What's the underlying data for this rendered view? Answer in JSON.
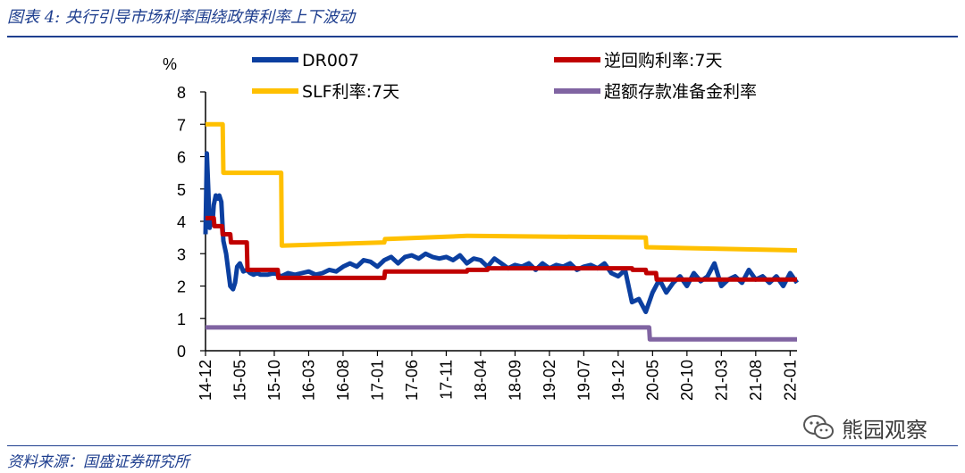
{
  "figure": {
    "title": "图表 4:  央行引导市场利率围绕政策利率上下波动",
    "source": "资料来源：国盛证券研究所",
    "watermark": "熊园观察"
  },
  "chart_data": {
    "type": "line",
    "title": "图表 4:  央行引导市场利率围绕政策利率上下波动",
    "ylabel": "%",
    "xlabel": "",
    "ylim": [
      0,
      8
    ],
    "yticks": [
      0,
      1,
      2,
      3,
      4,
      5,
      6,
      7,
      8
    ],
    "xlim": [
      0,
      86
    ],
    "x_ticks": [
      "14-12",
      "15-05",
      "15-10",
      "16-03",
      "16-08",
      "17-01",
      "17-06",
      "17-11",
      "18-04",
      "18-09",
      "19-02",
      "19-07",
      "19-12",
      "20-05",
      "20-10",
      "21-03",
      "21-08",
      "22-01"
    ],
    "x_unit": "months since 2014-12",
    "legend": "top",
    "colors": {
      "DR007": "#0b3fa0",
      "reverse_repo": "#c00000",
      "slf": "#ffc000",
      "excess_reserve": "#8064a2"
    },
    "series": [
      {
        "key": "DR007",
        "name": "DR007",
        "color": "#0b3fa0",
        "width": 5,
        "x": [
          0,
          0.2,
          0.4,
          0.6,
          0.8,
          1.0,
          1.2,
          1.5,
          1.8,
          2.0,
          2.3,
          2.6,
          3.0,
          3.3,
          3.6,
          4.0,
          4.3,
          4.6,
          5.0,
          5.5,
          6.0,
          6.5,
          7.0,
          7.5,
          8.0,
          9.0,
          10.0,
          11.0,
          12.0,
          13.0,
          14.0,
          15.0,
          16.0,
          17.0,
          18.0,
          19.0,
          20.0,
          21.0,
          22.0,
          23.0,
          24.0,
          25.0,
          26.0,
          27.0,
          28.0,
          29.0,
          30.0,
          31.0,
          32.0,
          33.0,
          34.0,
          35.0,
          36.0,
          37.0,
          38.0,
          39.0,
          40.0,
          41.0,
          42.0,
          43.0,
          44.0,
          45.0,
          46.0,
          47.0,
          48.0,
          49.0,
          50.0,
          51.0,
          52.0,
          53.0,
          54.0,
          55.0,
          56.0,
          57.0,
          58.0,
          59.0,
          60.0,
          61.0,
          62.0,
          63.0,
          64.0,
          65.0,
          66.0,
          67.0,
          68.0,
          69.0,
          70.0,
          71.0,
          72.0,
          73.0,
          74.0,
          75.0,
          76.0,
          77.0,
          78.0,
          79.0,
          80.0,
          81.0,
          82.0,
          83.0,
          84.0,
          85.0,
          86.0
        ],
        "values": [
          3.6,
          6.1,
          5.0,
          3.8,
          4.2,
          3.9,
          4.5,
          4.8,
          4.7,
          4.8,
          4.6,
          3.4,
          3.0,
          2.5,
          2.0,
          1.9,
          2.1,
          2.6,
          2.7,
          2.45,
          2.5,
          2.4,
          2.35,
          2.4,
          2.35,
          2.35,
          2.4,
          2.3,
          2.4,
          2.35,
          2.4,
          2.45,
          2.35,
          2.4,
          2.5,
          2.45,
          2.6,
          2.7,
          2.6,
          2.8,
          2.75,
          2.6,
          2.8,
          2.9,
          2.7,
          2.9,
          2.95,
          2.85,
          3.0,
          2.9,
          2.85,
          2.9,
          2.8,
          2.95,
          2.7,
          2.85,
          2.8,
          2.6,
          2.85,
          2.7,
          2.55,
          2.65,
          2.6,
          2.7,
          2.5,
          2.7,
          2.55,
          2.65,
          2.6,
          2.7,
          2.5,
          2.6,
          2.65,
          2.55,
          2.7,
          2.4,
          2.3,
          2.5,
          1.5,
          1.6,
          1.2,
          1.8,
          2.2,
          1.8,
          2.1,
          2.3,
          2.0,
          2.4,
          2.15,
          2.3,
          2.7,
          2.0,
          2.2,
          2.3,
          2.1,
          2.5,
          2.2,
          2.3,
          2.1,
          2.3,
          2.0,
          2.4,
          2.1
        ]
      },
      {
        "key": "reverse_repo",
        "name": "逆回购利率:7天",
        "color": "#c00000",
        "width": 5,
        "x": [
          0,
          1.2,
          1.3,
          2.4,
          2.5,
          3.6,
          3.7,
          6.0,
          6.1,
          10.5,
          10.6,
          26.0,
          26.1,
          38.0,
          38.1,
          41.0,
          41.1,
          62.0,
          62.1,
          64.0,
          64.1,
          65.5,
          65.6,
          86.0
        ],
        "values": [
          4.1,
          4.1,
          3.85,
          3.85,
          3.6,
          3.6,
          3.35,
          3.35,
          2.5,
          2.5,
          2.25,
          2.25,
          2.45,
          2.45,
          2.5,
          2.5,
          2.55,
          2.55,
          2.5,
          2.5,
          2.4,
          2.4,
          2.2,
          2.2
        ]
      },
      {
        "key": "slf",
        "name": "SLF利率:7天",
        "color": "#ffc000",
        "width": 5,
        "x": [
          0,
          2.5,
          2.6,
          11.0,
          11.1,
          26.0,
          26.1,
          38.0,
          38.1,
          64.0,
          64.1,
          86.0
        ],
        "values": [
          7.0,
          7.0,
          5.5,
          5.5,
          3.25,
          3.35,
          3.45,
          3.55,
          3.55,
          3.5,
          3.2,
          3.1
        ]
      },
      {
        "key": "excess_reserve",
        "name": "超额存款准备金利率",
        "color": "#8064a2",
        "width": 5,
        "x": [
          0,
          64.5,
          64.6,
          86.0
        ],
        "values": [
          0.72,
          0.72,
          0.35,
          0.35
        ]
      }
    ]
  }
}
